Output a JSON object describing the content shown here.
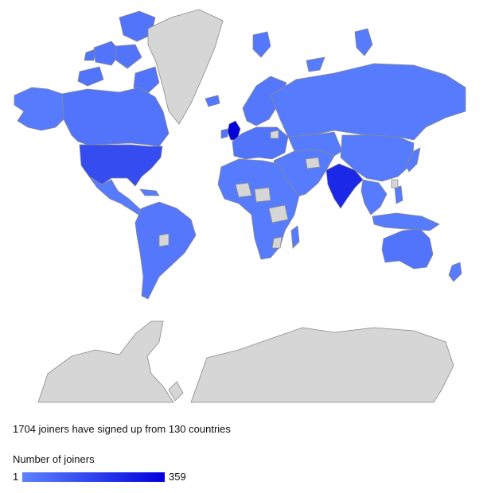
{
  "summary": "1704 joiners have signed up from 130 countries",
  "legend": {
    "title": "Number of joiners",
    "min": "1",
    "max": "359",
    "color_low": "#5b82ff",
    "color_high": "#0000dd"
  },
  "colors": {
    "no_data": "#d6d6d6",
    "border": "#8a8a8a",
    "low": "#5b82ff",
    "mid": "#2f55ff",
    "high": "#0000c8"
  },
  "map": {
    "regions": [
      {
        "name": "canada",
        "joiners": 40
      },
      {
        "name": "alaska",
        "joiners": 20
      },
      {
        "name": "usa",
        "joiners": 150
      },
      {
        "name": "mexico-central-america",
        "joiners": 20
      },
      {
        "name": "south-america",
        "joiners": 30
      },
      {
        "name": "greenland",
        "joiners": null
      },
      {
        "name": "uk",
        "joiners": 359
      },
      {
        "name": "europe",
        "joiners": 40
      },
      {
        "name": "scandinavia",
        "joiners": 30
      },
      {
        "name": "russia",
        "joiners": 20
      },
      {
        "name": "middle-east",
        "joiners": 20
      },
      {
        "name": "india",
        "joiners": 250
      },
      {
        "name": "china-asia",
        "joiners": 20
      },
      {
        "name": "southeast-asia",
        "joiners": 20
      },
      {
        "name": "africa",
        "joiners": 20
      },
      {
        "name": "australia",
        "joiners": 40
      },
      {
        "name": "new-zealand",
        "joiners": 20
      },
      {
        "name": "antarctica",
        "joiners": null
      }
    ]
  }
}
